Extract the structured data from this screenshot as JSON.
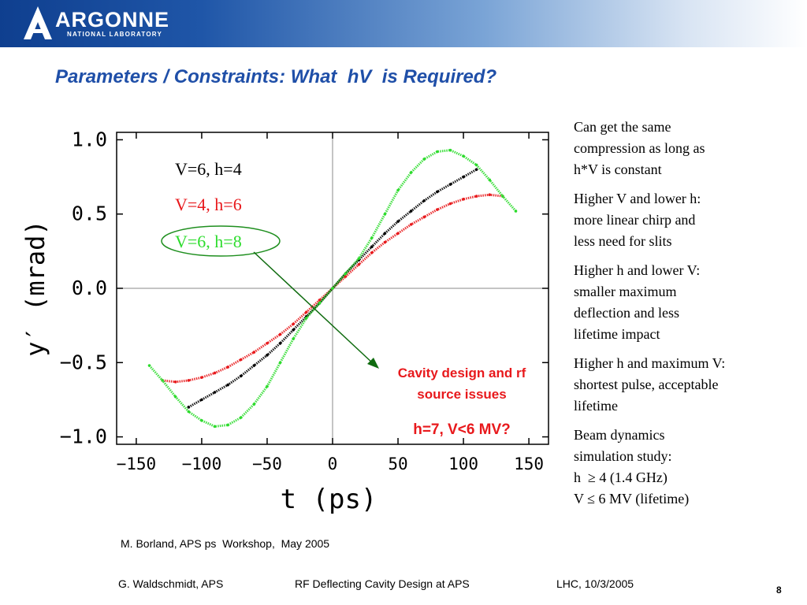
{
  "header": {
    "logo_text": "ARGONNE",
    "logo_subtext": "NATIONAL LABORATORY",
    "brand_color": "#1f56a8"
  },
  "slide": {
    "title": "Parameters / Constraints: What  hV  is Required?",
    "title_color": "#1f4fa8"
  },
  "chart_data": {
    "type": "scatter",
    "xlabel": "t (ps)",
    "ylabel": "y′ (mrad)",
    "xlim": [
      -165,
      165
    ],
    "ylim": [
      -1.05,
      1.05
    ],
    "xticks": [
      -150,
      -100,
      -50,
      0,
      50,
      100,
      150
    ],
    "yticks": [
      1.0,
      0.5,
      0.0,
      -0.5,
      -1.0
    ],
    "xtick_labels": [
      "−150",
      "−100",
      "−50",
      "0",
      "50",
      "100",
      "150"
    ],
    "ytick_labels": [
      "1.0",
      "0.5",
      "0.0",
      "−0.5",
      "−1.0"
    ],
    "grid": "zero lines only",
    "series": [
      {
        "name": "V=6,  h=4",
        "color": "#000000",
        "x": [
          -110,
          -100,
          -90,
          -80,
          -70,
          -60,
          -50,
          -40,
          -30,
          -20,
          -10,
          0,
          10,
          20,
          30,
          40,
          50,
          60,
          70,
          80,
          90,
          100,
          110
        ],
        "y": [
          -0.8,
          -0.75,
          -0.7,
          -0.65,
          -0.59,
          -0.52,
          -0.45,
          -0.37,
          -0.28,
          -0.19,
          -0.1,
          0.0,
          0.1,
          0.19,
          0.28,
          0.37,
          0.45,
          0.52,
          0.59,
          0.65,
          0.7,
          0.75,
          0.8
        ]
      },
      {
        "name": "V=4,  h=6",
        "color": "#e8191c",
        "x": [
          -130,
          -120,
          -110,
          -100,
          -90,
          -80,
          -70,
          -60,
          -50,
          -40,
          -30,
          -20,
          -10,
          0,
          10,
          20,
          30,
          40,
          50,
          60,
          70,
          80,
          90,
          100,
          110,
          120,
          130
        ],
        "y": [
          -0.62,
          -0.63,
          -0.62,
          -0.6,
          -0.57,
          -0.53,
          -0.48,
          -0.43,
          -0.37,
          -0.31,
          -0.24,
          -0.16,
          -0.08,
          0.0,
          0.08,
          0.16,
          0.24,
          0.31,
          0.37,
          0.43,
          0.48,
          0.53,
          0.57,
          0.6,
          0.62,
          0.63,
          0.62
        ]
      },
      {
        "name": "V=6,  h=8",
        "color": "#2ddc2d",
        "x": [
          -140,
          -130,
          -120,
          -110,
          -100,
          -90,
          -80,
          -70,
          -60,
          -50,
          -40,
          -30,
          -20,
          -10,
          0,
          10,
          20,
          30,
          40,
          50,
          60,
          70,
          80,
          90,
          100,
          110,
          120,
          130,
          140
        ],
        "y": [
          -0.52,
          -0.62,
          -0.73,
          -0.83,
          -0.89,
          -0.93,
          -0.92,
          -0.87,
          -0.78,
          -0.66,
          -0.5,
          -0.34,
          -0.2,
          -0.1,
          0.0,
          0.1,
          0.2,
          0.34,
          0.5,
          0.66,
          0.78,
          0.87,
          0.92,
          0.93,
          0.89,
          0.83,
          0.73,
          0.62,
          0.52
        ]
      }
    ],
    "annotations": {
      "label_black": "V=6,  h=4",
      "label_red": "V=4,  h=6",
      "label_green": "V=6,  h=8",
      "cavity_line1": "Cavity design and rf",
      "cavity_line2": "source issues",
      "hv_required": "h=7, V<6 MV?",
      "red_text_color": "#e8191c",
      "green_text_color": "#2ddc2d",
      "arrow_color": "#0f6b0f"
    }
  },
  "notes": [
    {
      "lines": [
        "Can get the same",
        "compression as long as",
        "h*V is constant"
      ]
    },
    {
      "lines": [
        "Higher V and lower h:",
        "more linear chirp and",
        "less need for slits"
      ]
    },
    {
      "lines": [
        "Higher h and lower V:",
        "smaller maximum",
        "deflection and less",
        "lifetime impact"
      ]
    },
    {
      "lines": [
        "Higher h and maximum V:",
        "shortest pulse, acceptable",
        "lifetime"
      ]
    },
    {
      "lines": [
        "Beam dynamics",
        "simulation study:",
        "h  ≥ 4 (1.4 GHz)",
        "V ≤ 6 MV (lifetime)"
      ]
    }
  ],
  "credit": "M. Borland, APS ps  Workshop,  May 2005",
  "footer": {
    "author": "G. Waldschmidt, APS",
    "talk": "RF Deflecting Cavity Design at APS",
    "venue": "LHC, 10/3/2005",
    "page_number": "8"
  }
}
